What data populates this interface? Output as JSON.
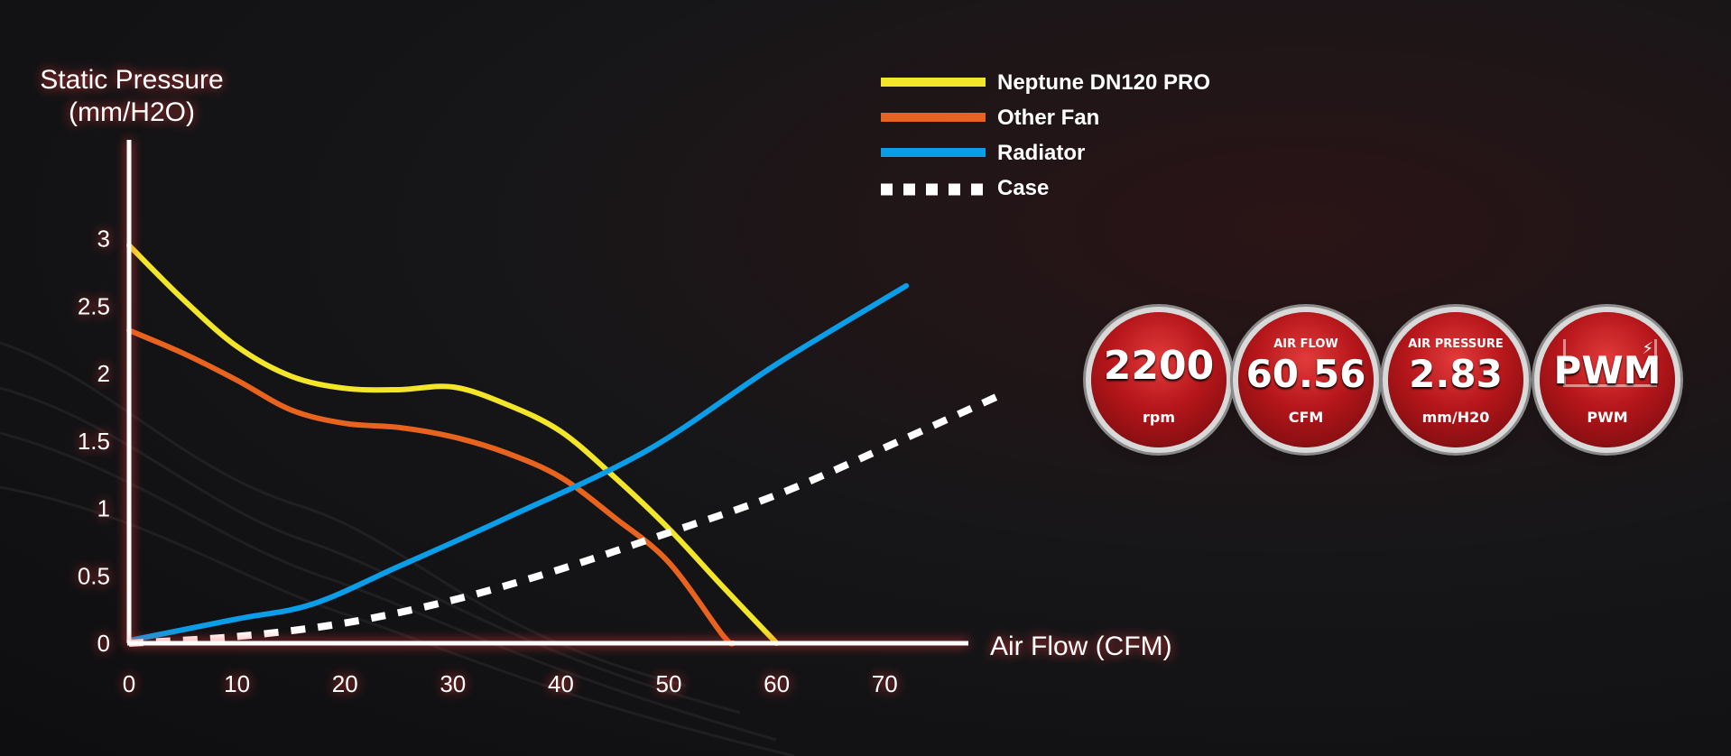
{
  "chart_data": {
    "type": "line",
    "ylabel_line1": "Static Pressure",
    "ylabel_line2": "(mm/H2O)",
    "xlabel": "Air Flow (CFM)",
    "xlim": [
      0,
      70
    ],
    "ylim": [
      0,
      3
    ],
    "x_ticks": [
      "0",
      "10",
      "20",
      "30",
      "40",
      "50",
      "60",
      "70"
    ],
    "y_ticks": [
      "0",
      "0.5",
      "1",
      "1.5",
      "2",
      "2.5",
      "3"
    ],
    "legend_position": "top-right",
    "series": [
      {
        "name": "Neptune DN120 PRO",
        "color": "#f2e52a",
        "style": "solid",
        "points": [
          [
            0,
            2.95
          ],
          [
            5,
            2.55
          ],
          [
            10,
            2.2
          ],
          [
            15,
            1.98
          ],
          [
            20,
            1.89
          ],
          [
            25,
            1.88
          ],
          [
            30,
            1.9
          ],
          [
            35,
            1.77
          ],
          [
            40,
            1.57
          ],
          [
            45,
            1.23
          ],
          [
            50,
            0.85
          ],
          [
            55,
            0.42
          ],
          [
            60,
            0
          ]
        ]
      },
      {
        "name": "Other Fan",
        "color": "#e8641e",
        "style": "solid",
        "points": [
          [
            0,
            2.32
          ],
          [
            5,
            2.15
          ],
          [
            10,
            1.95
          ],
          [
            15,
            1.73
          ],
          [
            20,
            1.63
          ],
          [
            25,
            1.6
          ],
          [
            30,
            1.53
          ],
          [
            35,
            1.41
          ],
          [
            40,
            1.23
          ],
          [
            45,
            0.93
          ],
          [
            50,
            0.6
          ],
          [
            55,
            0.06
          ],
          [
            56,
            0
          ]
        ]
      },
      {
        "name": "Radiator",
        "color": "#0a9de8",
        "style": "solid",
        "points": [
          [
            0,
            0.02
          ],
          [
            10,
            0.18
          ],
          [
            17,
            0.29
          ],
          [
            25,
            0.57
          ],
          [
            35,
            0.93
          ],
          [
            48,
            1.43
          ],
          [
            60,
            2.07
          ],
          [
            72,
            2.65
          ]
        ]
      },
      {
        "name": "Case",
        "color": "#ffffff",
        "style": "dashed",
        "points": [
          [
            0,
            0
          ],
          [
            10,
            0.05
          ],
          [
            20,
            0.15
          ],
          [
            30,
            0.32
          ],
          [
            40,
            0.55
          ],
          [
            50,
            0.82
          ],
          [
            60,
            1.1
          ],
          [
            70,
            1.45
          ],
          [
            81,
            1.85
          ]
        ]
      }
    ]
  },
  "specs": [
    {
      "top": "",
      "value": "2200",
      "unit": "rpm"
    },
    {
      "top": "AIR FLOW",
      "value": "60.56",
      "unit": "CFM"
    },
    {
      "top": "AIR PRESSURE",
      "value": "2.83",
      "unit": "mm/H20"
    },
    {
      "top": "",
      "value": "PWM",
      "unit": "PWM"
    }
  ]
}
